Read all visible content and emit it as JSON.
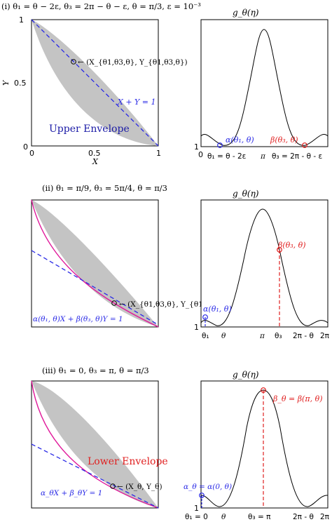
{
  "panels": [
    {
      "caption": "(i) θ₁ = θ − 2ε, θ₃ = 2π − θ − ε, θ = π/3, ε = 10⁻³",
      "left": {
        "x_ticks": [
          "0",
          "0.5",
          "1"
        ],
        "y_ticks": [
          "0",
          "0.5",
          "1"
        ],
        "xlabel": "X",
        "ylabel": "Y",
        "point_label": "← (X_{θ1,θ3,θ}, Y_{θ1,θ3,θ})",
        "line_label": "X + Y = 1",
        "envelope_label": "Upper Envelope"
      },
      "right": {
        "title": "g_θ(η)",
        "y_tick": "1",
        "x_ticks": [
          "0",
          "θ₁ = θ - 2ε",
          "π",
          "θ₃ = 2π - θ - ε"
        ],
        "alpha_label": "α(θ₁, θ)",
        "beta_label": "β(θ₃, θ)"
      }
    },
    {
      "caption": "(ii) θ₁ = π/9, θ₃ = 5π/4, θ = π/3",
      "left": {
        "point_label": "← (X_{θ1,θ3,θ}, Y_{θ1,θ3,θ})",
        "line_label": "α(θ₁, θ)X + β(θ₃, θ)Y = 1"
      },
      "right": {
        "title": "g_θ(η)",
        "y_tick": "1",
        "x_ticks": [
          "θ₁",
          "θ",
          "π",
          "θ₃",
          "2π - θ",
          "2π"
        ],
        "alpha_label": "α(θ₁, θ)",
        "beta_label": "β(θ₃, θ)"
      }
    },
    {
      "caption": "(iii) θ₁ = 0, θ₃ = π, θ = π/3",
      "left": {
        "point_label": "← (X_θ, Y_θ)",
        "line_label": "α_θX + β_θY = 1",
        "envelope_label": "Lower Envelope"
      },
      "right": {
        "title": "g_θ(η)",
        "y_tick": "1",
        "x_ticks": [
          "θ₁ = 0",
          "θ",
          "θ₃ = π",
          "2π - θ",
          "2π"
        ],
        "alpha_label": "α_θ = α(0, θ)",
        "beta_label": "β_θ = β(π, θ)"
      }
    }
  ],
  "colors": {
    "region_fill": "#c4c4c4",
    "envelope_curve": "#e0189a",
    "tangent_line": "#2a2ae6",
    "alpha_marker": "#2a2ae6",
    "beta_marker": "#e02020",
    "curve": "#000000"
  }
}
